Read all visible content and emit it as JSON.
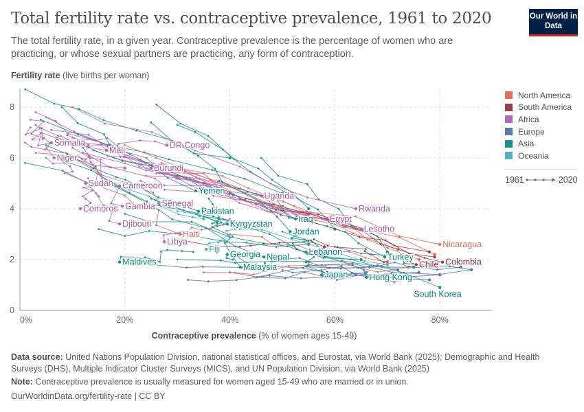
{
  "header": {
    "title": "Total fertility rate vs. contraceptive prevalence, 1961 to 2020",
    "subtitle": "The total fertility rate, in a given year. Contraceptive prevalence is the percentage of women who are practicing, or whose sexual partners are practicing, any form of contraception.",
    "logo": "Our World in Data"
  },
  "chart_data": {
    "type": "scatter",
    "connected": true,
    "title": "Total fertility rate vs. contraceptive prevalence, 1961 to 2020",
    "ylabel_bold": "Fertility rate",
    "ylabel_rest": " (live births per woman)",
    "xlabel_bold": "Contraceptive prevalence",
    "xlabel_rest": " (% of women ages 15-49)",
    "xlim": [
      0,
      90
    ],
    "ylim": [
      0,
      8.5
    ],
    "xticks": [
      {
        "v": 0,
        "label": "0%"
      },
      {
        "v": 20,
        "label": "20%"
      },
      {
        "v": 40,
        "label": "40%"
      },
      {
        "v": 60,
        "label": "60%"
      },
      {
        "v": 80,
        "label": "80%"
      }
    ],
    "yticks": [
      {
        "v": 0,
        "label": "0"
      },
      {
        "v": 2,
        "label": "2"
      },
      {
        "v": 4,
        "label": "4"
      },
      {
        "v": 6,
        "label": "6"
      },
      {
        "v": 8,
        "label": "8"
      }
    ],
    "grid": true,
    "legend_position": "right",
    "regions": [
      {
        "name": "North America",
        "color": "#e56e5a"
      },
      {
        "name": "South America",
        "color": "#9a3f4e"
      },
      {
        "name": "Africa",
        "color": "#b16bb6"
      },
      {
        "name": "Europe",
        "color": "#5c77a8"
      },
      {
        "name": "Asia",
        "color": "#18918a"
      },
      {
        "name": "Oceania",
        "color": "#4fb3c2"
      }
    ],
    "time_range": {
      "start": "1961",
      "end": "2020"
    },
    "labeled_series": [
      {
        "name": "Somalia",
        "region": "Africa",
        "start": [
          2,
          7.2
        ],
        "end": [
          6,
          6.6
        ]
      },
      {
        "name": "Mali",
        "region": "Africa",
        "start": [
          3,
          7.3
        ],
        "end": [
          16.5,
          6.3
        ]
      },
      {
        "name": "DR Congo",
        "region": "Africa",
        "start": [
          10,
          6.8
        ],
        "end": [
          28,
          6.5
        ]
      },
      {
        "name": "Niger",
        "region": "Africa",
        "start": [
          2,
          7.5
        ],
        "end": [
          6.5,
          6.0
        ]
      },
      {
        "name": "Burundi",
        "region": "Africa",
        "start": [
          9,
          6.9
        ],
        "end": [
          25,
          5.6
        ]
      },
      {
        "name": "Sudan",
        "region": "Africa",
        "start": [
          5,
          6.0
        ],
        "end": [
          12.5,
          5.0
        ]
      },
      {
        "name": "Cameroon",
        "region": "Africa",
        "start": [
          12,
          6.4
        ],
        "end": [
          19,
          4.9
        ]
      },
      {
        "name": "Yemen",
        "region": "Asia",
        "start": [
          8,
          8.0
        ],
        "end": [
          33.5,
          4.7
        ]
      },
      {
        "name": "Uganda",
        "region": "Africa",
        "start": [
          6,
          7.1
        ],
        "end": [
          46,
          4.5
        ]
      },
      {
        "name": "Comoros",
        "region": "Africa",
        "start": [
          14,
          5.0
        ],
        "end": [
          11.5,
          4.0
        ]
      },
      {
        "name": "Gambia",
        "region": "Africa",
        "start": [
          11,
          6.1
        ],
        "end": [
          19.5,
          4.1
        ]
      },
      {
        "name": "Senegal",
        "region": "Africa",
        "start": [
          10,
          6.4
        ],
        "end": [
          26.5,
          4.2
        ]
      },
      {
        "name": "Pakistan",
        "region": "Asia",
        "start": [
          5,
          6.5
        ],
        "end": [
          34,
          3.9
        ]
      },
      {
        "name": "Rwanda",
        "region": "Africa",
        "start": [
          10,
          8.0
        ],
        "end": [
          64,
          4.0
        ]
      },
      {
        "name": "Djibouti",
        "region": "Africa",
        "start": [
          13,
          5.2
        ],
        "end": [
          19,
          3.4
        ]
      },
      {
        "name": "Kyrgyzstan",
        "region": "Asia",
        "start": [
          35,
          3.7
        ],
        "end": [
          39.5,
          3.4
        ]
      },
      {
        "name": "Iraq",
        "region": "Asia",
        "start": [
          14,
          6.3
        ],
        "end": [
          52.5,
          3.6
        ]
      },
      {
        "name": "Egypt",
        "region": "Africa",
        "start": [
          24,
          5.3
        ],
        "end": [
          58.5,
          3.6
        ]
      },
      {
        "name": "Lesotho",
        "region": "Africa",
        "start": [
          23,
          5.1
        ],
        "end": [
          65,
          3.2
        ]
      },
      {
        "name": "Jordan",
        "region": "Asia",
        "start": [
          25,
          7.4
        ],
        "end": [
          51.5,
          3.1
        ]
      },
      {
        "name": "Libya",
        "region": "Africa",
        "start": [
          40,
          3.6
        ],
        "end": [
          27.5,
          2.7
        ]
      },
      {
        "name": "Haiti",
        "region": "North America",
        "start": [
          10,
          6.0
        ],
        "end": [
          30.5,
          3.0
        ]
      },
      {
        "name": "Fiji",
        "region": "Oceania",
        "start": [
          41,
          3.2
        ],
        "end": [
          35.5,
          2.4
        ]
      },
      {
        "name": "Nicaragua",
        "region": "North America",
        "start": [
          27,
          5.8
        ],
        "end": [
          80,
          2.6
        ]
      },
      {
        "name": "Maldives",
        "region": "Asia",
        "start": [
          33,
          2.3
        ],
        "end": [
          19,
          1.9
        ]
      },
      {
        "name": "Georgia",
        "region": "Asia",
        "start": [
          47,
          1.7
        ],
        "end": [
          39.5,
          2.2
        ]
      },
      {
        "name": "Nepal",
        "region": "Asia",
        "start": [
          8,
          5.9
        ],
        "end": [
          46.5,
          2.1
        ]
      },
      {
        "name": "Lebanon",
        "region": "Asia",
        "start": [
          53,
          3.0
        ],
        "end": [
          54.5,
          2.3
        ]
      },
      {
        "name": "Turkey",
        "region": "Asia",
        "start": [
          38,
          5.1
        ],
        "end": [
          69.5,
          2.1
        ]
      },
      {
        "name": "Chile",
        "region": "South America",
        "start": [
          56,
          2.8
        ],
        "end": [
          75.5,
          1.8
        ]
      },
      {
        "name": "Colombia",
        "region": "South America",
        "start": [
          43,
          4.4
        ],
        "end": [
          80.5,
          1.9
        ]
      },
      {
        "name": "Malaysia",
        "region": "Asia",
        "start": [
          36,
          4.4
        ],
        "end": [
          42,
          1.7
        ]
      },
      {
        "name": "Japan",
        "region": "Asia",
        "start": [
          56,
          2.1
        ],
        "end": [
          57.5,
          1.4
        ]
      },
      {
        "name": "Hong Kong",
        "region": "Asia",
        "start": [
          50,
          3.1
        ],
        "end": [
          66,
          1.3
        ]
      },
      {
        "name": "South Korea",
        "region": "Asia",
        "start": [
          25,
          4.4
        ],
        "end": [
          80,
          0.9
        ]
      }
    ],
    "unlabeled_series": [
      {
        "region": "Africa",
        "start": [
          3,
          7.8
        ],
        "end": [
          30,
          5.2
        ]
      },
      {
        "region": "Africa",
        "start": [
          5,
          7.6
        ],
        "end": [
          38,
          4.8
        ]
      },
      {
        "region": "Africa",
        "start": [
          1,
          6.6
        ],
        "end": [
          20,
          5.6
        ]
      },
      {
        "region": "Africa",
        "start": [
          4,
          7.0
        ],
        "end": [
          35,
          5.0
        ]
      },
      {
        "region": "Africa",
        "start": [
          7,
          6.8
        ],
        "end": [
          47,
          4.4
        ]
      },
      {
        "region": "Africa",
        "start": [
          12,
          6.2
        ],
        "end": [
          55,
          3.8
        ]
      },
      {
        "region": "Africa",
        "start": [
          18,
          6.0
        ],
        "end": [
          60,
          3.5
        ]
      },
      {
        "region": "Africa",
        "start": [
          22,
          5.8
        ],
        "end": [
          62,
          3.3
        ]
      },
      {
        "region": "Africa",
        "start": [
          3,
          6.2
        ],
        "end": [
          40,
          4.6
        ]
      },
      {
        "region": "Africa",
        "start": [
          26,
          5.4
        ],
        "end": [
          66,
          3.1
        ]
      },
      {
        "region": "Asia",
        "start": [
          1,
          8.7
        ],
        "end": [
          40,
          6.0
        ]
      },
      {
        "region": "Asia",
        "start": [
          4,
          7.5
        ],
        "end": [
          50,
          4.6
        ]
      },
      {
        "region": "Asia",
        "start": [
          1,
          5.8
        ],
        "end": [
          45,
          3.3
        ]
      },
      {
        "region": "Asia",
        "start": [
          26,
          8.1
        ],
        "end": [
          60,
          3.2
        ]
      },
      {
        "region": "Asia",
        "start": [
          30,
          7.3
        ],
        "end": [
          55,
          4.0
        ]
      },
      {
        "region": "Asia",
        "start": [
          46,
          6.0
        ],
        "end": [
          70,
          2.3
        ]
      },
      {
        "region": "Asia",
        "start": [
          20,
          3.8
        ],
        "end": [
          65,
          2.0
        ]
      },
      {
        "region": "Asia",
        "start": [
          30,
          2.0
        ],
        "end": [
          75,
          1.7
        ]
      },
      {
        "region": "Asia",
        "start": [
          60,
          2.5
        ],
        "end": [
          86,
          1.6
        ]
      },
      {
        "region": "Asia",
        "start": [
          15,
          3.2
        ],
        "end": [
          55,
          2.6
        ]
      },
      {
        "region": "North America",
        "start": [
          20,
          6.5
        ],
        "end": [
          72,
          2.4
        ]
      },
      {
        "region": "North America",
        "start": [
          30,
          5.6
        ],
        "end": [
          79,
          2.2
        ]
      },
      {
        "region": "North America",
        "start": [
          45,
          4.6
        ],
        "end": [
          76,
          2.0
        ]
      },
      {
        "region": "North America",
        "start": [
          40,
          3.0
        ],
        "end": [
          70,
          1.9
        ]
      },
      {
        "region": "North America",
        "start": [
          35,
          1.5
        ],
        "end": [
          74,
          1.7
        ]
      },
      {
        "region": "South America",
        "start": [
          30,
          5.3
        ],
        "end": [
          78,
          2.3
        ]
      },
      {
        "region": "South America",
        "start": [
          45,
          4.2
        ],
        "end": [
          79,
          2.1
        ]
      },
      {
        "region": "South America",
        "start": [
          29,
          2.8
        ],
        "end": [
          58,
          2.5
        ]
      },
      {
        "region": "Europe",
        "start": [
          40,
          1.5
        ],
        "end": [
          86,
          1.6
        ]
      },
      {
        "region": "Europe",
        "start": [
          45,
          1.3
        ],
        "end": [
          80,
          1.4
        ]
      },
      {
        "region": "Europe",
        "start": [
          50,
          1.6
        ],
        "end": [
          76,
          1.5
        ]
      },
      {
        "region": "Europe",
        "start": [
          32,
          1.2
        ],
        "end": [
          70,
          1.3
        ]
      },
      {
        "region": "Europe",
        "start": [
          55,
          1.8
        ],
        "end": [
          84,
          1.7
        ]
      },
      {
        "region": "Europe",
        "start": [
          60,
          1.4
        ],
        "end": [
          78,
          1.2
        ]
      },
      {
        "region": "Europe",
        "start": [
          25,
          1.8
        ],
        "end": [
          66,
          1.5
        ]
      },
      {
        "region": "Europe",
        "start": [
          48,
          2.0
        ],
        "end": [
          72,
          1.6
        ]
      },
      {
        "region": "Oceania",
        "start": [
          20,
          4.8
        ],
        "end": [
          35,
          3.6
        ]
      },
      {
        "region": "Oceania",
        "start": [
          30,
          3.9
        ],
        "end": [
          70,
          1.8
        ]
      }
    ]
  },
  "footer": {
    "source_label": "Data source:",
    "source_text": " United Nations Population Division, national statistical offices, and Eurostat, via World Bank (2025); Demographic and Health Surveys (DHS), Multiple Indicator Cluster Surveys (MICS), and UN Population Division, via World Bank (2025)",
    "note_label": "Note:",
    "note_text": " Contraceptive prevalence is usually measured for women aged 15-49 who are married or in union.",
    "url": "OurWorldinData.org/fertility-rate | CC BY"
  }
}
